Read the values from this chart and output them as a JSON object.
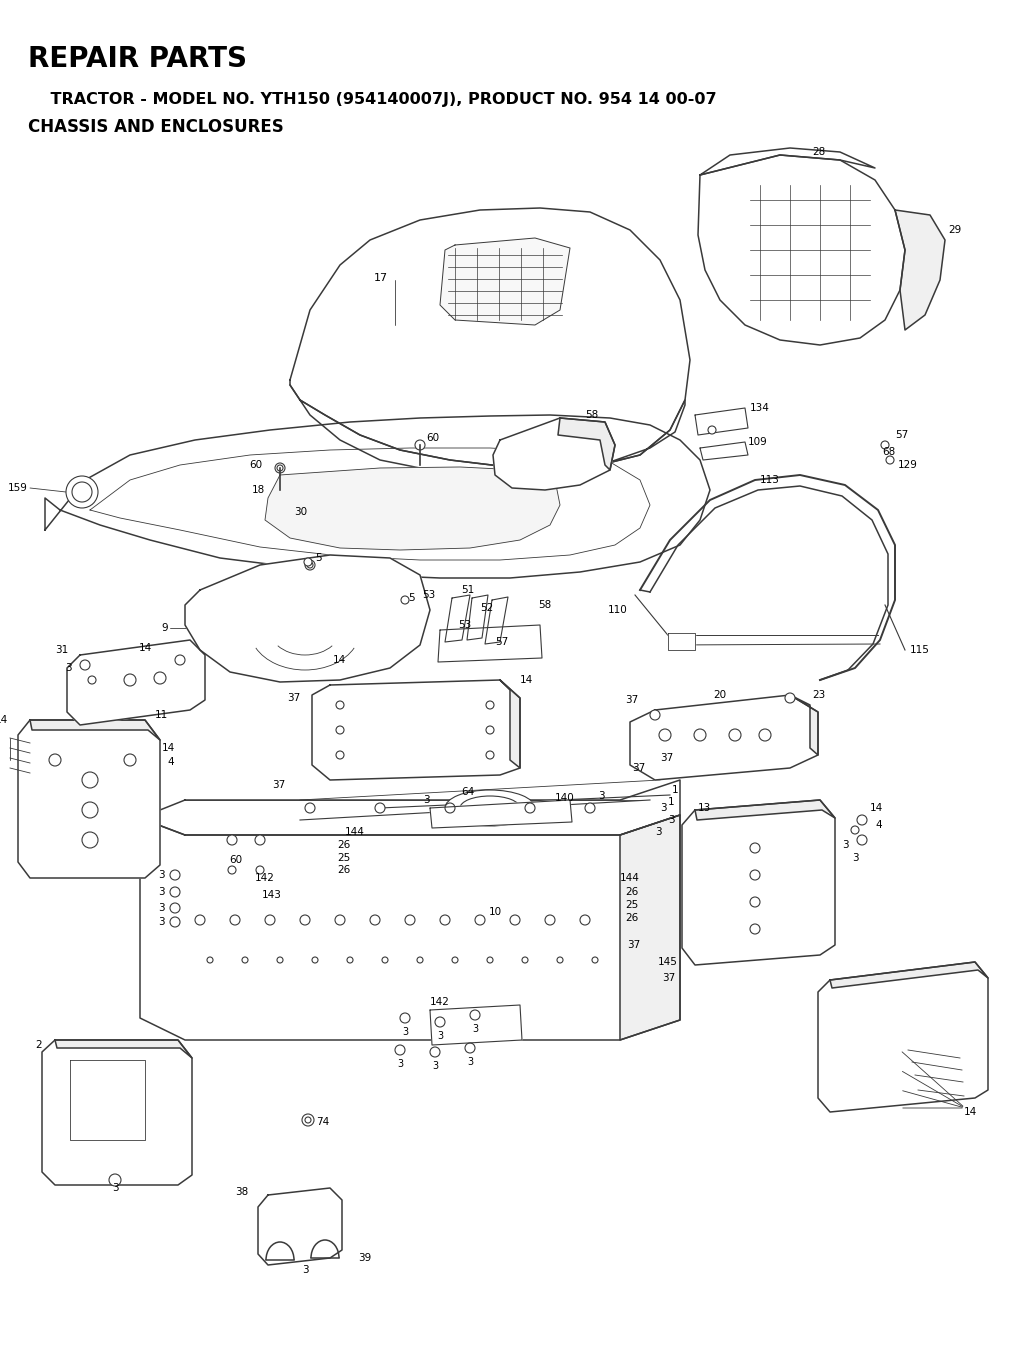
{
  "title1": "REPAIR PARTS",
  "title2": "    TRACTOR - MODEL NO. YTH150 (954140007J), PRODUCT NO. 954 14 00-07",
  "title3": "CHASSIS AND ENCLOSURES",
  "bg_color": "#ffffff",
  "line_color": "#3a3a3a",
  "label_color": "#000000",
  "title1_fontsize": 20,
  "title2_fontsize": 11.5,
  "title3_fontsize": 12,
  "figw": 10.24,
  "figh": 13.59,
  "dpi": 100
}
